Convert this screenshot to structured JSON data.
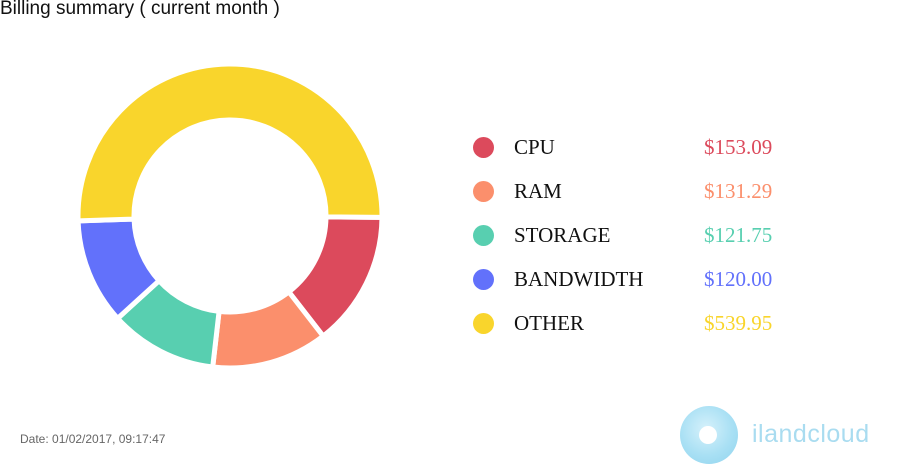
{
  "header": {
    "title": "Billing summary ( current month )"
  },
  "footer": {
    "date": "Date: 01/02/2017, 09:17:47"
  },
  "brand": {
    "name": "iland",
    "name_suffix": "cloud",
    "icon": "cloud-logo-icon"
  },
  "chart_data": {
    "type": "pie",
    "variant": "donut",
    "legend": "right",
    "categories": [
      "CPU",
      "RAM",
      "STORAGE",
      "BANDWIDTH",
      "OTHER"
    ],
    "values": [
      153.09,
      131.29,
      121.75,
      120.0,
      539.95
    ],
    "value_labels": [
      "$153.09",
      "$131.29",
      "$121.75",
      "$120.00",
      "$539.95"
    ],
    "colors": [
      "#dc4a5c",
      "#fb8f6c",
      "#58cfb0",
      "#6271fb",
      "#f9d52c"
    ]
  }
}
